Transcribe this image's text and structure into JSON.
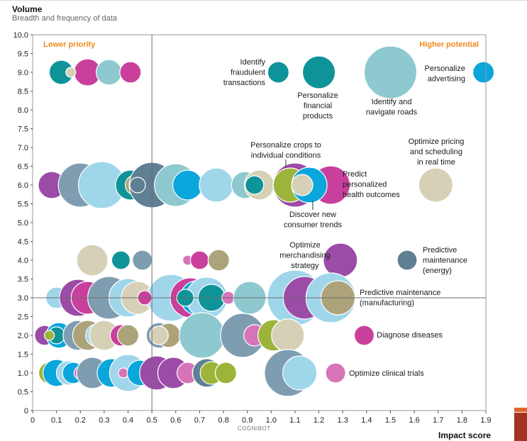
{
  "title": "Volume",
  "subtitle": "Breadth and frequency of data",
  "xlabel": "Impact score",
  "watermark": "COGNIBOT",
  "quadrant_labels": {
    "left": "Lower priority",
    "right": "Higher potential"
  },
  "colors": {
    "teal": "#0e9399",
    "magenta": "#c8409b",
    "lightblue": "#9fd6ea",
    "brightblue": "#0aa6dc",
    "steel": "#7f9db0",
    "slate": "#5f7f93",
    "beige": "#d6d1b6",
    "tan": "#ada37a",
    "olive": "#9db43a",
    "purple": "#9b4ca7",
    "seafoam": "#8dc9cf",
    "pinkpurple": "#d773b8",
    "quadrant": "#f08a1c"
  },
  "chart_data": {
    "type": "scatter",
    "xlabel": "Impact score",
    "ylabel": "Volume",
    "xlim": [
      0,
      1.9
    ],
    "ylim": [
      0,
      10
    ],
    "x_ticks": [
      "0",
      "0.1",
      "0.2",
      "0.3",
      "0.4",
      "0.5",
      "0.6",
      "0.7",
      "0.8",
      "0.9",
      "1.0",
      "1.1",
      "1.2",
      "1.3",
      "1.4",
      "1.5",
      "1.6",
      "1.7",
      "1.8",
      "1.9"
    ],
    "y_ticks": [
      "0",
      "0.5",
      "1.0",
      "1.5",
      "2.0",
      "2.5",
      "3.0",
      "3.5",
      "4.0",
      "4.5",
      "5.0",
      "5.5",
      "6.0",
      "6.5",
      "7.0",
      "7.5",
      "8.0",
      "8.5",
      "9.0",
      "9.5",
      "10.0"
    ],
    "divider_x": 0.5,
    "divider_y": 3.0,
    "grid": false,
    "annotations": [
      {
        "lines": [
          "Identify",
          "fraudulent",
          "transactions"
        ],
        "x": 1.03,
        "y": 9.0
      },
      {
        "lines": [
          "Personalize",
          "financial",
          "products"
        ],
        "x": 1.2,
        "y": 9.0
      },
      {
        "lines": [
          "Identify and",
          "navigate roads"
        ],
        "x": 1.5,
        "y": 9.0
      },
      {
        "lines": [
          "Personalize",
          "advertising"
        ],
        "x": 1.88,
        "y": 9.0
      },
      {
        "lines": [
          "Personalize crops to",
          "individual conditions"
        ],
        "x": 1.07,
        "y": 6.0
      },
      {
        "lines": [
          "Optimize pricing",
          "and scheduling",
          "in real time"
        ],
        "x": 1.69,
        "y": 6.0
      },
      {
        "lines": [
          "Predict",
          "personalized",
          "health outcomes"
        ],
        "x": 1.22,
        "y": 6.0
      },
      {
        "lines": [
          "Discover new",
          "consumer trends"
        ],
        "x": 1.17,
        "y": 6.0
      },
      {
        "lines": [
          "Optimize",
          "merchandising",
          "strategy"
        ],
        "x": 1.29,
        "y": 4.0
      },
      {
        "lines": [
          "Predictive",
          "maintenance",
          "(energy)"
        ],
        "x": 1.57,
        "y": 4.0
      },
      {
        "lines": [
          "Predictive maintenance",
          "(manufacturing)"
        ],
        "x": 1.27,
        "y": 3.0
      },
      {
        "lines": [
          "Diagnose diseases"
        ],
        "x": 1.38,
        "y": 2.0
      },
      {
        "lines": [
          "Optimize clinical trials"
        ],
        "x": 1.27,
        "y": 1.0
      }
    ],
    "bubbles": [
      {
        "x": 0.12,
        "y": 9.0,
        "r": 17,
        "color": "teal"
      },
      {
        "x": 0.23,
        "y": 9.0,
        "r": 19,
        "color": "magenta"
      },
      {
        "x": 0.32,
        "y": 9.0,
        "r": 18,
        "color": "seafoam"
      },
      {
        "x": 0.41,
        "y": 9.0,
        "r": 15,
        "color": "magenta"
      },
      {
        "x": 0.16,
        "y": 9.0,
        "r": 7,
        "color": "beige"
      },
      {
        "x": 1.03,
        "y": 9.0,
        "r": 15,
        "color": "teal"
      },
      {
        "x": 1.2,
        "y": 9.0,
        "r": 23,
        "color": "teal"
      },
      {
        "x": 1.5,
        "y": 9.0,
        "r": 37,
        "color": "seafoam"
      },
      {
        "x": 1.89,
        "y": 9.0,
        "r": 15,
        "color": "brightblue"
      },
      {
        "x": 0.08,
        "y": 6.0,
        "r": 19,
        "color": "purple"
      },
      {
        "x": 0.2,
        "y": 6.0,
        "r": 31,
        "color": "steel"
      },
      {
        "x": 0.29,
        "y": 6.0,
        "r": 33,
        "color": "lightblue"
      },
      {
        "x": 0.41,
        "y": 6.0,
        "r": 21,
        "color": "teal"
      },
      {
        "x": 0.43,
        "y": 6.0,
        "r": 14,
        "color": "tan"
      },
      {
        "x": 0.5,
        "y": 6.0,
        "r": 32,
        "color": "slate"
      },
      {
        "x": 0.6,
        "y": 6.0,
        "r": 30,
        "color": "seafoam"
      },
      {
        "x": 0.65,
        "y": 6.0,
        "r": 21,
        "color": "brightblue"
      },
      {
        "x": 0.77,
        "y": 6.0,
        "r": 24,
        "color": "lightblue"
      },
      {
        "x": 0.89,
        "y": 6.0,
        "r": 19,
        "color": "seafoam"
      },
      {
        "x": 0.95,
        "y": 6.0,
        "r": 21,
        "color": "beige"
      },
      {
        "x": 0.93,
        "y": 6.0,
        "r": 13,
        "color": "teal"
      },
      {
        "x": 1.1,
        "y": 6.0,
        "r": 31,
        "color": "purple"
      },
      {
        "x": 1.25,
        "y": 6.0,
        "r": 27,
        "color": "magenta"
      },
      {
        "x": 1.08,
        "y": 6.0,
        "r": 24,
        "color": "olive"
      },
      {
        "x": 1.16,
        "y": 6.0,
        "r": 25,
        "color": "brightblue"
      },
      {
        "x": 1.13,
        "y": 6.0,
        "r": 15,
        "color": "beige"
      },
      {
        "x": 1.69,
        "y": 6.0,
        "r": 24,
        "color": "beige"
      },
      {
        "x": 0.44,
        "y": 6.0,
        "r": 11,
        "color": "slate"
      },
      {
        "x": 0.25,
        "y": 4.0,
        "r": 22,
        "color": "beige"
      },
      {
        "x": 0.37,
        "y": 4.0,
        "r": 13,
        "color": "teal"
      },
      {
        "x": 0.46,
        "y": 4.0,
        "r": 14,
        "color": "steel"
      },
      {
        "x": 0.65,
        "y": 4.0,
        "r": 7,
        "color": "pinkpurple"
      },
      {
        "x": 0.7,
        "y": 4.0,
        "r": 13,
        "color": "magenta"
      },
      {
        "x": 0.78,
        "y": 4.0,
        "r": 15,
        "color": "tan"
      },
      {
        "x": 1.29,
        "y": 4.0,
        "r": 24,
        "color": "purple"
      },
      {
        "x": 1.57,
        "y": 4.0,
        "r": 14,
        "color": "slate"
      },
      {
        "x": 0.1,
        "y": 3.0,
        "r": 15,
        "color": "lightblue"
      },
      {
        "x": 0.19,
        "y": 3.0,
        "r": 26,
        "color": "purple"
      },
      {
        "x": 0.23,
        "y": 3.0,
        "r": 23,
        "color": "magenta"
      },
      {
        "x": 0.32,
        "y": 3.0,
        "r": 30,
        "color": "steel"
      },
      {
        "x": 0.4,
        "y": 3.0,
        "r": 27,
        "color": "lightblue"
      },
      {
        "x": 0.44,
        "y": 3.0,
        "r": 23,
        "color": "beige"
      },
      {
        "x": 0.52,
        "y": 3.0,
        "r": 17,
        "color": "magenta"
      },
      {
        "x": 0.58,
        "y": 3.0,
        "r": 33,
        "color": "lightblue"
      },
      {
        "x": 0.66,
        "y": 3.0,
        "r": 28,
        "color": "magenta"
      },
      {
        "x": 0.69,
        "y": 3.0,
        "r": 24,
        "color": "brightblue"
      },
      {
        "x": 0.73,
        "y": 3.0,
        "r": 29,
        "color": "lightblue"
      },
      {
        "x": 0.75,
        "y": 3.0,
        "r": 19,
        "color": "teal"
      },
      {
        "x": 0.82,
        "y": 3.0,
        "r": 9,
        "color": "pinkpurple"
      },
      {
        "x": 0.91,
        "y": 3.0,
        "r": 23,
        "color": "seafoam"
      },
      {
        "x": 1.1,
        "y": 3.0,
        "r": 39,
        "color": "lightblue"
      },
      {
        "x": 1.14,
        "y": 3.0,
        "r": 30,
        "color": "purple"
      },
      {
        "x": 1.25,
        "y": 3.0,
        "r": 35,
        "color": "lightblue"
      },
      {
        "x": 1.28,
        "y": 3.0,
        "r": 24,
        "color": "tan"
      },
      {
        "x": 0.47,
        "y": 3.0,
        "r": 10,
        "color": "magenta"
      },
      {
        "x": 0.64,
        "y": 3.0,
        "r": 12,
        "color": "teal"
      },
      {
        "x": 0.05,
        "y": 2.0,
        "r": 14,
        "color": "purple"
      },
      {
        "x": 0.11,
        "y": 2.0,
        "r": 18,
        "color": "brightblue"
      },
      {
        "x": 0.1,
        "y": 2.0,
        "r": 12,
        "color": "teal"
      },
      {
        "x": 0.07,
        "y": 2.0,
        "r": 7,
        "color": "olive"
      },
      {
        "x": 0.19,
        "y": 2.0,
        "r": 21,
        "color": "steel"
      },
      {
        "x": 0.23,
        "y": 2.0,
        "r": 21,
        "color": "tan"
      },
      {
        "x": 0.27,
        "y": 2.0,
        "r": 16,
        "color": "lightblue"
      },
      {
        "x": 0.3,
        "y": 2.0,
        "r": 21,
        "color": "beige"
      },
      {
        "x": 0.37,
        "y": 2.0,
        "r": 15,
        "color": "magenta"
      },
      {
        "x": 0.4,
        "y": 2.0,
        "r": 15,
        "color": "tan"
      },
      {
        "x": 0.53,
        "y": 2.0,
        "r": 18,
        "color": "steel"
      },
      {
        "x": 0.57,
        "y": 2.0,
        "r": 17,
        "color": "tan"
      },
      {
        "x": 0.53,
        "y": 2.0,
        "r": 13,
        "color": "beige"
      },
      {
        "x": 0.71,
        "y": 2.0,
        "r": 32,
        "color": "seafoam"
      },
      {
        "x": 0.88,
        "y": 2.0,
        "r": 31,
        "color": "steel"
      },
      {
        "x": 0.93,
        "y": 2.0,
        "r": 15,
        "color": "pinkpurple"
      },
      {
        "x": 1.01,
        "y": 2.0,
        "r": 22,
        "color": "olive"
      },
      {
        "x": 1.07,
        "y": 2.0,
        "r": 23,
        "color": "beige"
      },
      {
        "x": 1.39,
        "y": 2.0,
        "r": 14,
        "color": "magenta"
      },
      {
        "x": 0.07,
        "y": 1.0,
        "r": 15,
        "color": "olive"
      },
      {
        "x": 0.1,
        "y": 1.0,
        "r": 19,
        "color": "brightblue"
      },
      {
        "x": 0.15,
        "y": 1.0,
        "r": 17,
        "color": "lightblue"
      },
      {
        "x": 0.17,
        "y": 1.0,
        "r": 15,
        "color": "brightblue"
      },
      {
        "x": 0.2,
        "y": 1.0,
        "r": 9,
        "color": "pinkpurple"
      },
      {
        "x": 0.25,
        "y": 1.0,
        "r": 22,
        "color": "steel"
      },
      {
        "x": 0.33,
        "y": 1.0,
        "r": 20,
        "color": "brightblue"
      },
      {
        "x": 0.38,
        "y": 1.0,
        "r": 13,
        "color": "lightblue"
      },
      {
        "x": 0.4,
        "y": 1.0,
        "r": 26,
        "color": "lightblue"
      },
      {
        "x": 0.38,
        "y": 1.0,
        "r": 7,
        "color": "pinkpurple"
      },
      {
        "x": 0.45,
        "y": 1.0,
        "r": 18,
        "color": "brightblue"
      },
      {
        "x": 0.52,
        "y": 1.0,
        "r": 24,
        "color": "purple"
      },
      {
        "x": 0.59,
        "y": 1.0,
        "r": 22,
        "color": "purple"
      },
      {
        "x": 0.65,
        "y": 1.0,
        "r": 15,
        "color": "pinkpurple"
      },
      {
        "x": 0.72,
        "y": 1.0,
        "r": 17,
        "color": "beige"
      },
      {
        "x": 0.73,
        "y": 1.0,
        "r": 20,
        "color": "slate"
      },
      {
        "x": 0.75,
        "y": 1.0,
        "r": 16,
        "color": "olive"
      },
      {
        "x": 0.81,
        "y": 1.0,
        "r": 15,
        "color": "olive"
      },
      {
        "x": 1.07,
        "y": 1.0,
        "r": 33,
        "color": "steel"
      },
      {
        "x": 1.12,
        "y": 1.0,
        "r": 24,
        "color": "lightblue"
      },
      {
        "x": 1.27,
        "y": 1.0,
        "r": 14,
        "color": "pinkpurple"
      }
    ]
  }
}
